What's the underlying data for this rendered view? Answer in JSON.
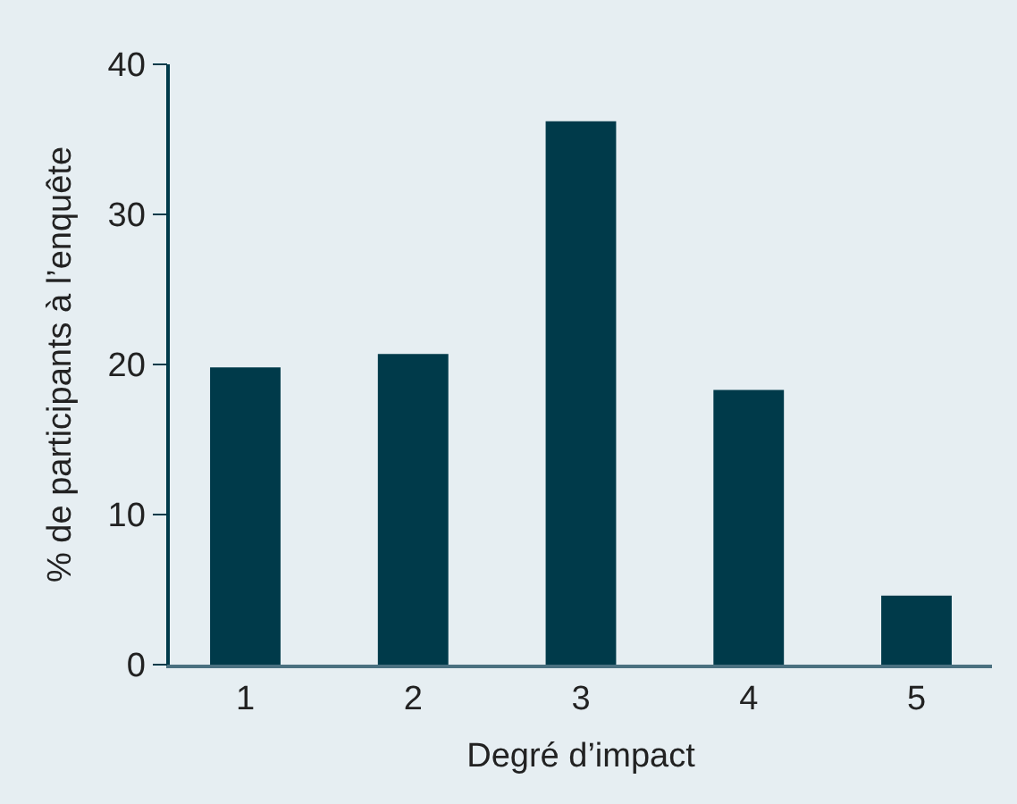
{
  "chart_data": {
    "type": "bar",
    "xlabel": "Degré d’impact",
    "ylabel": "% de participants à l’enquête",
    "categories": [
      "1",
      "2",
      "3",
      "4",
      "5"
    ],
    "values": [
      19.8,
      20.7,
      36.2,
      18.3,
      4.6
    ],
    "color": "#003a4a",
    "ylim": [
      0,
      40
    ],
    "yticks": [
      0,
      10,
      20,
      30,
      40
    ],
    "grid": false,
    "legend": false
  }
}
